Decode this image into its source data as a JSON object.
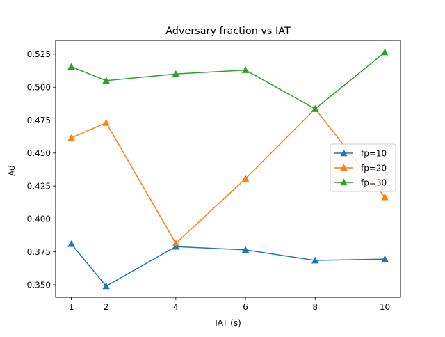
{
  "chart_data": {
    "type": "line",
    "title": "Adversary fraction vs IAT",
    "xlabel": "IAT (s)",
    "ylabel": "Ad",
    "x": [
      1,
      2,
      4,
      6,
      8,
      10
    ],
    "xticks": [
      "1",
      "2",
      "4",
      "6",
      "8",
      "10"
    ],
    "xlim": [
      0.55,
      10.45
    ],
    "ylim": [
      0.3405,
      0.5355
    ],
    "yticks": [
      "0.350",
      "0.375",
      "0.400",
      "0.425",
      "0.450",
      "0.475",
      "0.500",
      "0.525"
    ],
    "ytick_values": [
      0.35,
      0.375,
      0.4,
      0.425,
      0.45,
      0.475,
      0.5,
      0.525
    ],
    "grid": false,
    "legend_position": "center-right",
    "marker": "triangle-up",
    "series": [
      {
        "name": "fp=10",
        "color": "#1f77b4",
        "values": [
          0.381,
          0.349,
          0.379,
          0.3765,
          0.3685,
          0.3695
        ]
      },
      {
        "name": "fp=20",
        "color": "#ff7f0e",
        "values": [
          0.4615,
          0.473,
          0.3815,
          0.4305,
          0.4835,
          0.4165
        ]
      },
      {
        "name": "fp=30",
        "color": "#2ca02c",
        "values": [
          0.5155,
          0.505,
          0.51,
          0.513,
          0.4835,
          0.5265
        ]
      }
    ]
  }
}
